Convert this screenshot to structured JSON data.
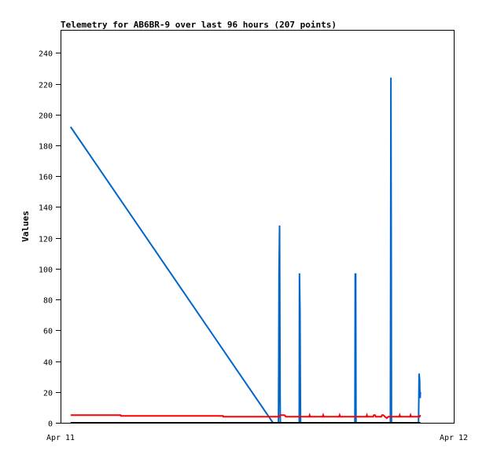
{
  "chart_data": {
    "type": "line",
    "title": "Telemetry for AB6BR-9 over last 96 hours (207 points)",
    "xlabel": "",
    "ylabel": "Values",
    "x_range": [
      "Apr 11 00:00",
      "Apr 12 00:00"
    ],
    "x_ticks": [
      "Apr 11",
      "Apr 12"
    ],
    "ylim": [
      0,
      255
    ],
    "y_ticks": [
      0,
      20,
      40,
      60,
      80,
      100,
      120,
      140,
      160,
      180,
      200,
      220,
      240
    ],
    "grid": false,
    "series": [
      {
        "color": "#0066cc",
        "points": [
          [
            "00:37",
            192
          ],
          [
            "12:58",
            0
          ],
          [
            "13:18",
            0
          ],
          [
            "13:19",
            32
          ],
          [
            "13:20",
            96
          ],
          [
            "13:22",
            128
          ],
          [
            "13:24",
            16
          ],
          [
            "13:25",
            0
          ],
          [
            "14:34",
            0
          ],
          [
            "14:35",
            97
          ],
          [
            "14:37",
            72
          ],
          [
            "14:38",
            24
          ],
          [
            "14:39",
            0
          ],
          [
            "17:58",
            0
          ],
          [
            "17:59",
            97
          ],
          [
            "18:00",
            48
          ],
          [
            "18:01",
            97
          ],
          [
            "18:02",
            0
          ],
          [
            "20:08",
            0
          ],
          [
            "20:09",
            112
          ],
          [
            "20:10",
            224
          ],
          [
            "20:11",
            112
          ],
          [
            "20:12",
            0
          ],
          [
            "21:51",
            0
          ],
          [
            "21:52",
            16
          ],
          [
            "21:53",
            32
          ],
          [
            "21:55",
            28
          ],
          [
            "21:56",
            20
          ],
          [
            "21:57",
            16
          ],
          [
            "21:58",
            20
          ]
        ]
      },
      {
        "color": "#ff0000",
        "points": [
          [
            "00:37",
            5
          ],
          [
            "03:40",
            5
          ],
          [
            "03:41",
            4.5
          ],
          [
            "09:55",
            4.5
          ],
          [
            "09:56",
            4
          ],
          [
            "13:20",
            4
          ],
          [
            "13:25",
            5
          ],
          [
            "13:40",
            5
          ],
          [
            "13:45",
            4
          ],
          [
            "15:10",
            4
          ],
          [
            "15:12",
            5
          ],
          [
            "15:14",
            4
          ],
          [
            "16:00",
            4
          ],
          [
            "16:02",
            5
          ],
          [
            "16:04",
            4
          ],
          [
            "17:00",
            4
          ],
          [
            "17:02",
            5
          ],
          [
            "17:04",
            4
          ],
          [
            "18:40",
            4
          ],
          [
            "18:42",
            5
          ],
          [
            "18:44",
            4
          ],
          [
            "19:05",
            4
          ],
          [
            "19:07",
            5
          ],
          [
            "19:12",
            5
          ],
          [
            "19:14",
            4
          ],
          [
            "19:35",
            4
          ],
          [
            "19:37",
            5
          ],
          [
            "19:42",
            5
          ],
          [
            "19:48",
            4
          ],
          [
            "19:55",
            3
          ],
          [
            "20:00",
            4
          ],
          [
            "20:40",
            4
          ],
          [
            "20:42",
            5
          ],
          [
            "20:44",
            4
          ],
          [
            "21:20",
            4
          ],
          [
            "21:22",
            5
          ],
          [
            "21:24",
            4
          ],
          [
            "21:55",
            4
          ],
          [
            "21:58",
            5
          ]
        ]
      },
      {
        "color": "#000000",
        "points": [
          [
            "00:37",
            0
          ],
          [
            "21:58",
            0
          ]
        ]
      }
    ]
  }
}
